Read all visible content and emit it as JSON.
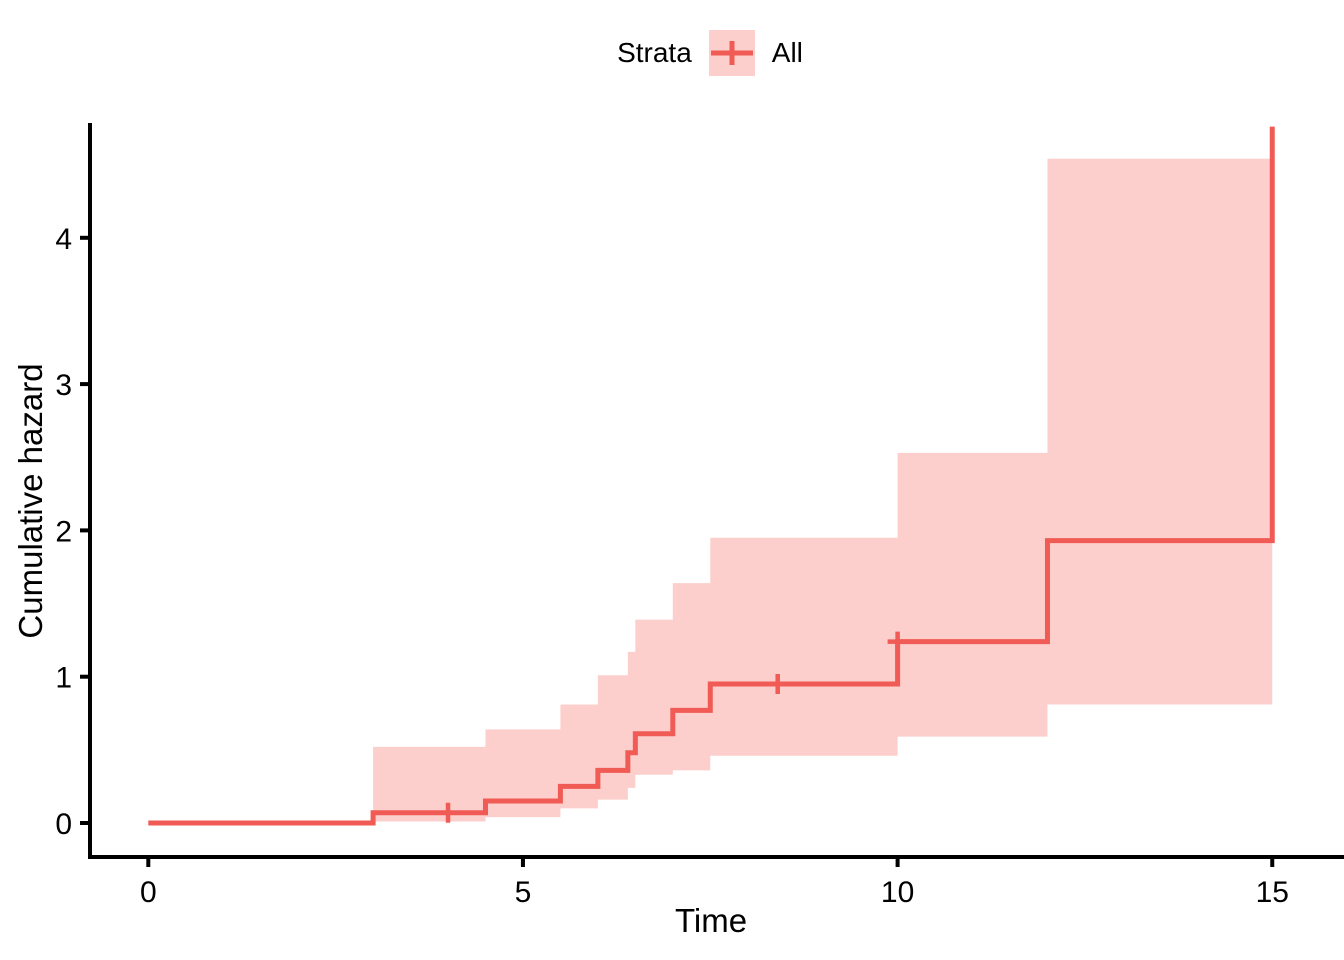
{
  "figure": {
    "legend": {
      "title": "Strata",
      "entry_label": "All",
      "position": "top"
    },
    "x_axis": {
      "label": "Time",
      "tick_labels": [
        "0",
        "5",
        "10",
        "15"
      ],
      "tick_values": [
        0,
        5,
        10,
        15
      ]
    },
    "y_axis": {
      "label": "Cumulative hazard",
      "tick_labels": [
        "0",
        "1",
        "2",
        "3",
        "4"
      ],
      "tick_values": [
        0,
        1,
        2,
        3,
        4
      ]
    }
  },
  "colors": {
    "line": "#F15B55",
    "ribbon": "#FCCFCC",
    "axis": "#000000",
    "text": "#000000"
  },
  "chart_data": {
    "type": "line",
    "subtype": "step-function-cumulative-hazard-with-confidence-band",
    "title": "",
    "xlabel": "Time",
    "ylabel": "Cumulative hazard",
    "xlim": [
      0,
      15.95
    ],
    "ylim": [
      0,
      4.99
    ],
    "xticks": [
      0,
      5,
      10,
      15
    ],
    "yticks": [
      0,
      1,
      2,
      3,
      4
    ],
    "grid": false,
    "legend_position": "top",
    "legend_title": "Strata",
    "series": [
      {
        "name": "All",
        "step_levels": [
          {
            "from": 0,
            "to": 3,
            "h": 0.0
          },
          {
            "from": 3,
            "to": 4.5,
            "h": 0.07
          },
          {
            "from": 4.5,
            "to": 5.5,
            "h": 0.15
          },
          {
            "from": 5.5,
            "to": 6,
            "h": 0.25
          },
          {
            "from": 6,
            "to": 6.4,
            "h": 0.36
          },
          {
            "from": 6.4,
            "to": 6.5,
            "h": 0.48
          },
          {
            "from": 6.5,
            "to": 7,
            "h": 0.61
          },
          {
            "from": 7,
            "to": 7.5,
            "h": 0.77
          },
          {
            "from": 7.5,
            "to": 10,
            "h": 0.95
          },
          {
            "from": 10,
            "to": 12,
            "h": 1.24
          },
          {
            "from": 12,
            "to": 15,
            "h": 1.93
          }
        ],
        "final_jump": {
          "t": 15,
          "from": 1.93,
          "to": 4.76,
          "clipped_at_panel_top": true
        },
        "censor_marks": [
          {
            "t": 4,
            "h": 0.07
          },
          {
            "t": 8.4,
            "h": 0.95
          },
          {
            "t": 10,
            "h": 1.24
          }
        ],
        "confidence_band_steps": [
          {
            "t0": 3,
            "t1": 4.5,
            "lower": 0.01,
            "upper": 0.52
          },
          {
            "t0": 4.5,
            "t1": 5.5,
            "lower": 0.04,
            "upper": 0.64
          },
          {
            "t0": 5.5,
            "t1": 6,
            "lower": 0.1,
            "upper": 0.81
          },
          {
            "t0": 6,
            "t1": 6.4,
            "lower": 0.16,
            "upper": 1.01
          },
          {
            "t0": 6.4,
            "t1": 6.5,
            "lower": 0.24,
            "upper": 1.17
          },
          {
            "t0": 6.5,
            "t1": 7,
            "lower": 0.33,
            "upper": 1.39
          },
          {
            "t0": 7,
            "t1": 7.5,
            "lower": 0.36,
            "upper": 1.64
          },
          {
            "t0": 7.5,
            "t1": 10,
            "lower": 0.46,
            "upper": 1.95
          },
          {
            "t0": 10,
            "t1": 12,
            "lower": 0.59,
            "upper": 2.53
          },
          {
            "t0": 12,
            "t1": 15,
            "lower": 0.81,
            "upper": 4.54
          }
        ]
      }
    ]
  }
}
